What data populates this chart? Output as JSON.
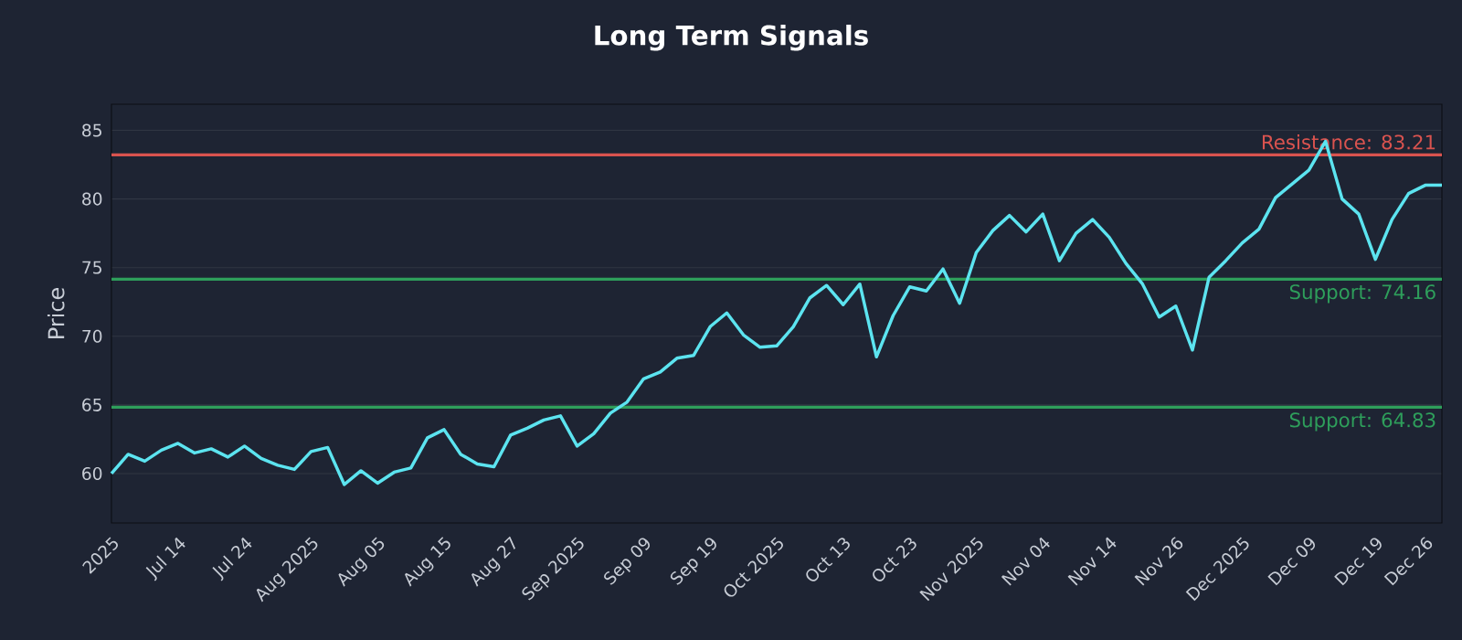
{
  "chart_data": {
    "type": "line",
    "title": "Long Term Signals",
    "ylabel": "Price",
    "categories": [
      "2025",
      null,
      null,
      null,
      "Jul 14",
      null,
      null,
      null,
      "Jul 24",
      null,
      null,
      null,
      "Aug 2025",
      null,
      null,
      null,
      "Aug 05",
      null,
      null,
      null,
      "Aug 15",
      null,
      null,
      null,
      "Aug 27",
      null,
      null,
      null,
      "Sep 2025",
      null,
      null,
      null,
      "Sep 09",
      null,
      null,
      null,
      "Sep 19",
      null,
      null,
      null,
      "Oct 2025",
      null,
      null,
      null,
      "Oct 13",
      null,
      null,
      null,
      "Oct 23",
      null,
      null,
      null,
      "Nov 2025",
      null,
      null,
      null,
      "Nov 04",
      null,
      null,
      null,
      "Nov 14",
      null,
      null,
      null,
      "Nov 26",
      null,
      null,
      null,
      "Dec 2025",
      null,
      null,
      null,
      "Dec 09",
      null,
      null,
      null,
      "Dec 19",
      null,
      null,
      "Dec 26",
      null
    ],
    "series": [
      {
        "color": "#5ce4f0",
        "values": [
          60.0,
          61.4,
          60.9,
          61.7,
          62.2,
          61.5,
          61.8,
          61.2,
          62.0,
          61.1,
          60.6,
          60.3,
          61.6,
          61.9,
          59.2,
          60.2,
          59.3,
          60.1,
          60.4,
          62.6,
          63.2,
          61.4,
          60.7,
          60.5,
          62.8,
          63.3,
          63.9,
          64.2,
          62.0,
          62.9,
          64.4,
          65.2,
          66.9,
          67.4,
          68.4,
          68.6,
          70.7,
          71.7,
          70.1,
          69.2,
          69.3,
          70.7,
          72.8,
          73.7,
          72.3,
          73.8,
          68.5,
          71.5,
          73.6,
          73.3,
          74.9,
          72.4,
          76.1,
          77.7,
          78.8,
          77.6,
          78.9,
          75.5,
          77.5,
          78.5,
          77.2,
          75.3,
          73.8,
          71.4,
          72.2,
          69.0,
          74.3,
          75.5,
          76.8,
          77.8,
          80.1,
          81.1,
          82.1,
          84.2,
          80.0,
          78.9,
          75.6,
          78.5,
          80.4,
          81.0,
          81.0
        ]
      }
    ],
    "ylim": [
      56.4,
      86.9
    ],
    "yticks": [
      60,
      65,
      70,
      75,
      80,
      85
    ],
    "grid": "y",
    "marker": "none",
    "line_style": "solid",
    "ref_lines": [
      {
        "axis": "y",
        "value": 83.21,
        "label": "Resistance: 83.21",
        "color": "#d9534f"
      },
      {
        "axis": "y",
        "value": 74.16,
        "label": "Support: 74.16",
        "color": "#2e9e5b"
      },
      {
        "axis": "y",
        "value": 64.83,
        "label": "Support: 64.83",
        "color": "#2e9e5b"
      }
    ]
  }
}
